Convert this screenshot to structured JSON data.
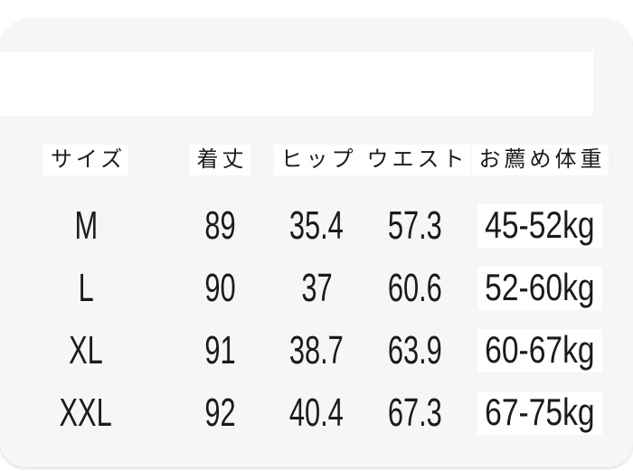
{
  "chart_data": {
    "type": "table",
    "title": "",
    "columns": [
      "サイズ",
      "着丈",
      "ヒップ",
      "ウエスト",
      "お薦め体重"
    ],
    "rows": [
      [
        "M",
        "89",
        "35.4",
        "57.3",
        "45-52kg"
      ],
      [
        "L",
        "90",
        "37",
        "60.6",
        "52-60kg"
      ],
      [
        "XL",
        "91",
        "38.7",
        "63.9",
        "60-67kg"
      ],
      [
        "XXL",
        "92",
        "40.4",
        "67.3",
        "67-75kg"
      ]
    ]
  },
  "table": {
    "headers": {
      "size": "サイズ",
      "length": "着丈",
      "hip": "ヒップ",
      "waist": "ウエスト",
      "weight": "お薦め体重"
    },
    "rows": [
      {
        "size": "M",
        "length": "89",
        "hip": "35.4",
        "waist": "57.3",
        "weight": "45-52kg"
      },
      {
        "size": "L",
        "length": "90",
        "hip": "37",
        "waist": "60.6",
        "weight": "52-60kg"
      },
      {
        "size": "XL",
        "length": "91",
        "hip": "38.7",
        "waist": "63.9",
        "weight": "60-67kg"
      },
      {
        "size": "XXL",
        "length": "92",
        "hip": "40.4",
        "waist": "67.3",
        "weight": "67-75kg"
      }
    ]
  },
  "colors": {
    "page_bg": "#ffffff",
    "card_bg": "#f6f6f7",
    "chip_bg": "#ffffff",
    "text": "#1b1b1d"
  }
}
